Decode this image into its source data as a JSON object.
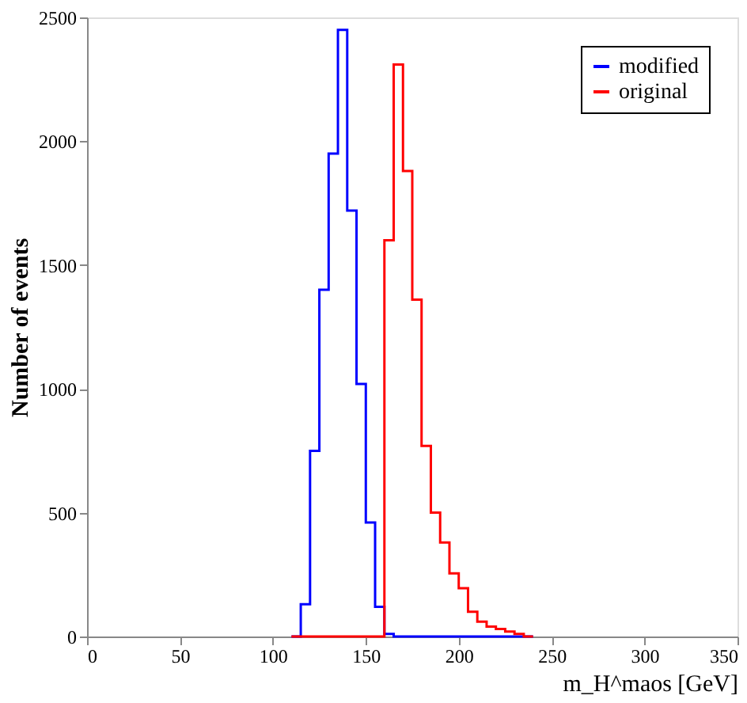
{
  "chart_data": {
    "type": "histogram",
    "xlabel": "m_H^maos [GeV]",
    "ylabel": "Number of events",
    "bins": [
      110,
      115,
      120,
      125,
      130,
      135,
      140,
      145,
      150,
      155,
      160,
      165,
      170,
      175,
      180,
      185,
      190,
      195,
      200,
      205,
      210,
      215,
      220,
      225,
      230,
      235,
      240
    ],
    "series": [
      {
        "name": "modified",
        "color": "#0000ff",
        "values": [
          0,
          130,
          750,
          1400,
          1950,
          2450,
          1720,
          1020,
          460,
          120,
          10,
          0,
          0,
          0,
          0,
          0,
          0,
          0,
          0,
          0,
          0,
          0,
          0,
          0,
          0,
          0
        ]
      },
      {
        "name": "original",
        "color": "#ff0000",
        "values": [
          0,
          0,
          0,
          0,
          0,
          0,
          0,
          0,
          0,
          0,
          1600,
          2310,
          1880,
          1360,
          770,
          500,
          380,
          255,
          195,
          100,
          60,
          40,
          30,
          20,
          10,
          0
        ]
      }
    ],
    "xlim": [
      0,
      350
    ],
    "xticks": [
      0,
      50,
      100,
      150,
      200,
      250,
      300,
      350
    ],
    "ylim": [
      0,
      2500
    ],
    "yticks": [
      0,
      500,
      1000,
      1500,
      2000,
      2500
    ],
    "grid": false,
    "legend": "top right"
  }
}
